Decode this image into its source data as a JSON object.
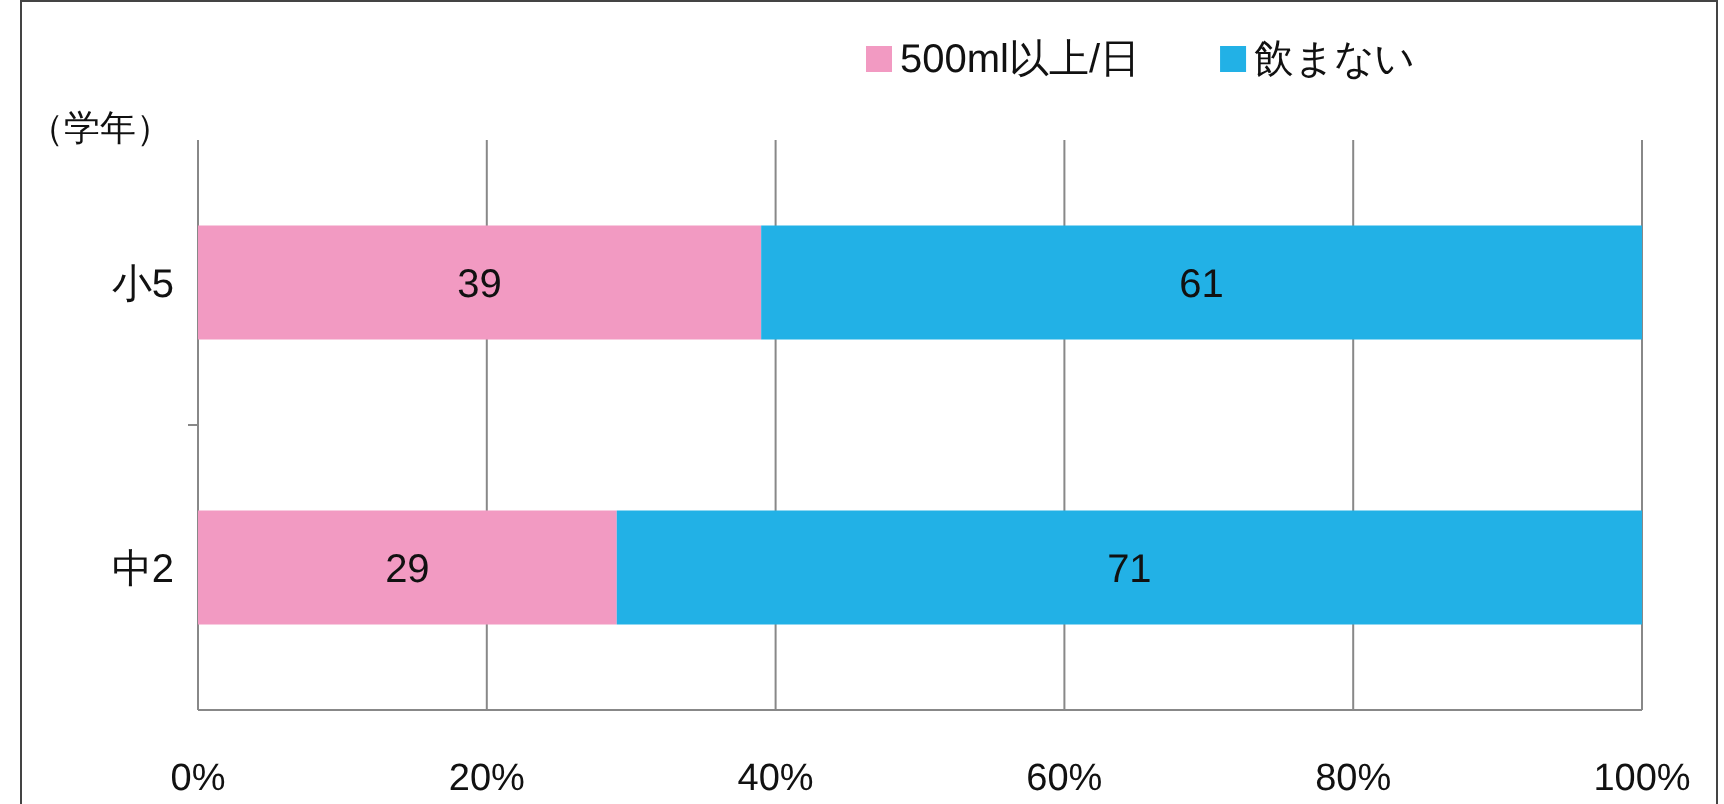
{
  "chart_data": {
    "type": "bar",
    "orientation": "horizontal",
    "stacked": true,
    "ylabel": "（学年）",
    "categories": [
      "小5",
      "中2"
    ],
    "series": [
      {
        "name": "500ml以上/日",
        "color": "#f29ac2",
        "values": [
          39,
          29
        ]
      },
      {
        "name": "飲まない",
        "color": "#22b1e6",
        "values": [
          61,
          71
        ]
      }
    ],
    "xlim": [
      0,
      100
    ],
    "xticks": [
      {
        "value": 0,
        "label": "0%"
      },
      {
        "value": 20,
        "label": "20%"
      },
      {
        "value": 40,
        "label": "40%"
      },
      {
        "value": 60,
        "label": "60%"
      },
      {
        "value": 80,
        "label": "80%"
      },
      {
        "value": 100,
        "label": "100%"
      }
    ],
    "grid": "x",
    "legend": "top right",
    "data_labels": true
  }
}
